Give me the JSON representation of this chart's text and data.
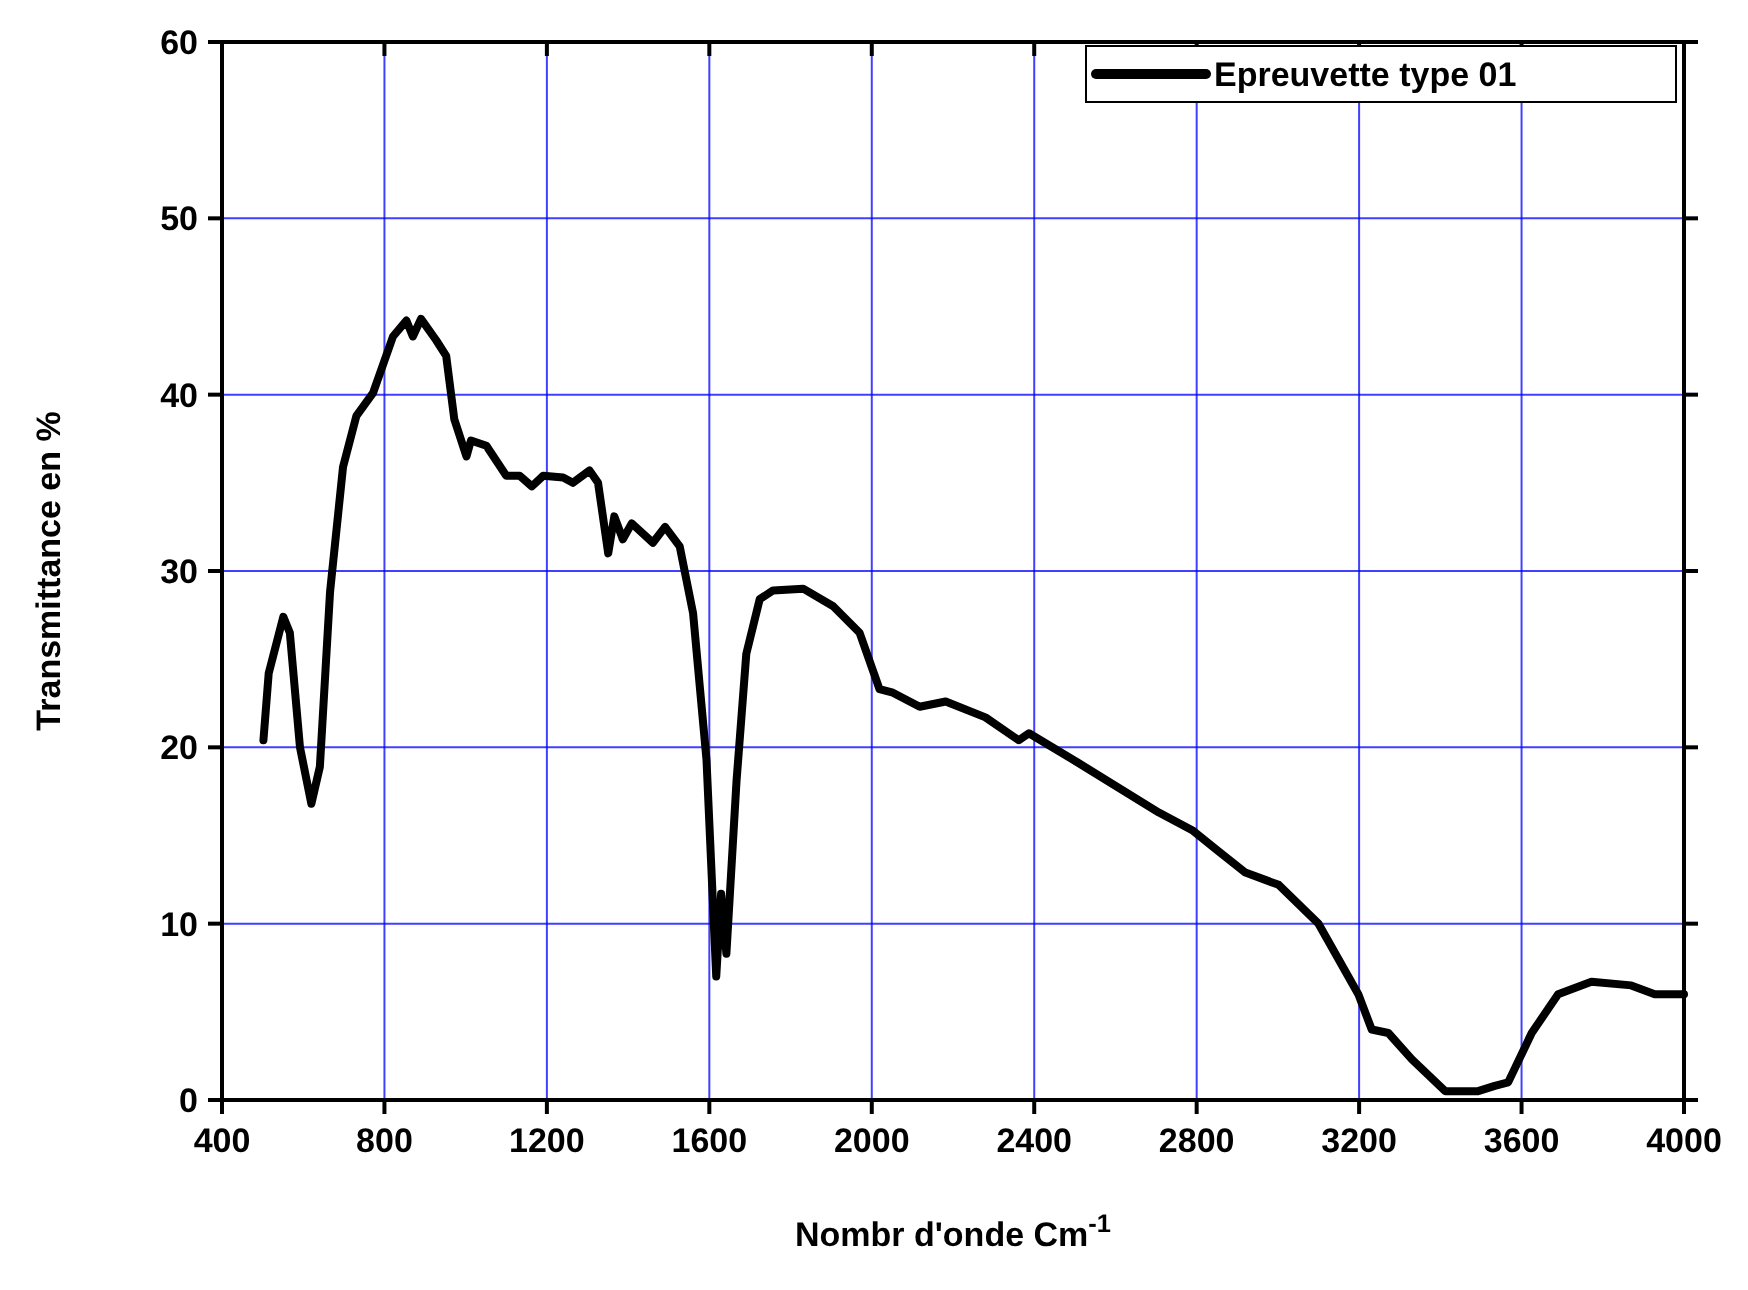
{
  "chart_data": {
    "type": "line",
    "xlabel": "Nombr d'onde Cm$^{-1}$",
    "ylabel": "Transmittance en %",
    "xlim": [
      400,
      4000
    ],
    "ylim": [
      0,
      60
    ],
    "xticks": [
      400,
      800,
      1200,
      1600,
      2000,
      2400,
      2800,
      3200,
      3600,
      4000
    ],
    "yticks": [
      0,
      10,
      20,
      30,
      40,
      50,
      60
    ],
    "grid": true,
    "legend": "top right",
    "line_style": "solid",
    "marker": "none",
    "series": [
      {
        "name": "Epreuvette type 01",
        "color": "#000000",
        "x": [
          502,
          515,
          551,
          567,
          592,
          620,
          641,
          666,
          698,
          731,
          772,
          821,
          854,
          870,
          890,
          927,
          952,
          972,
          1002,
          1013,
          1051,
          1100,
          1133,
          1163,
          1191,
          1240,
          1264,
          1305,
          1326,
          1351,
          1366,
          1387,
          1409,
          1461,
          1491,
          1527,
          1560,
          1593,
          1617,
          1629,
          1642,
          1667,
          1691,
          1724,
          1757,
          1831,
          1905,
          1970,
          2019,
          2052,
          2118,
          2182,
          2280,
          2362,
          2387,
          2510,
          2707,
          2789,
          2854,
          2920,
          3002,
          3100,
          3198,
          3231,
          3272,
          3330,
          3412,
          3493,
          3534,
          3567,
          3625,
          3690,
          3772,
          3870,
          3928,
          4000
        ],
        "values": [
          20.4,
          24.2,
          27.4,
          26.5,
          20,
          16.8,
          18.9,
          28.8,
          35.9,
          38.8,
          40.1,
          43.3,
          44.2,
          43.3,
          44.3,
          43.1,
          42.2,
          38.6,
          36.5,
          37.4,
          37.1,
          35.4,
          35.4,
          34.8,
          35.4,
          35.3,
          35.0,
          35.7,
          35.0,
          31.0,
          33.1,
          31.8,
          32.7,
          31.6,
          32.5,
          31.4,
          27.6,
          19.3,
          7.0,
          11.7,
          8.3,
          18.1,
          25.3,
          28.4,
          28.9,
          29.0,
          28.0,
          26.5,
          23.3,
          23.1,
          22.3,
          22.6,
          21.7,
          20.4,
          20.8,
          19.1,
          16.3,
          15.3,
          14.1,
          12.9,
          12.2,
          10.0,
          6.0,
          4.0,
          3.8,
          2.3,
          0.5,
          0.5,
          0.8,
          1.0,
          3.8,
          6.0,
          6.7,
          6.5,
          6.0,
          6.0
        ]
      }
    ]
  }
}
